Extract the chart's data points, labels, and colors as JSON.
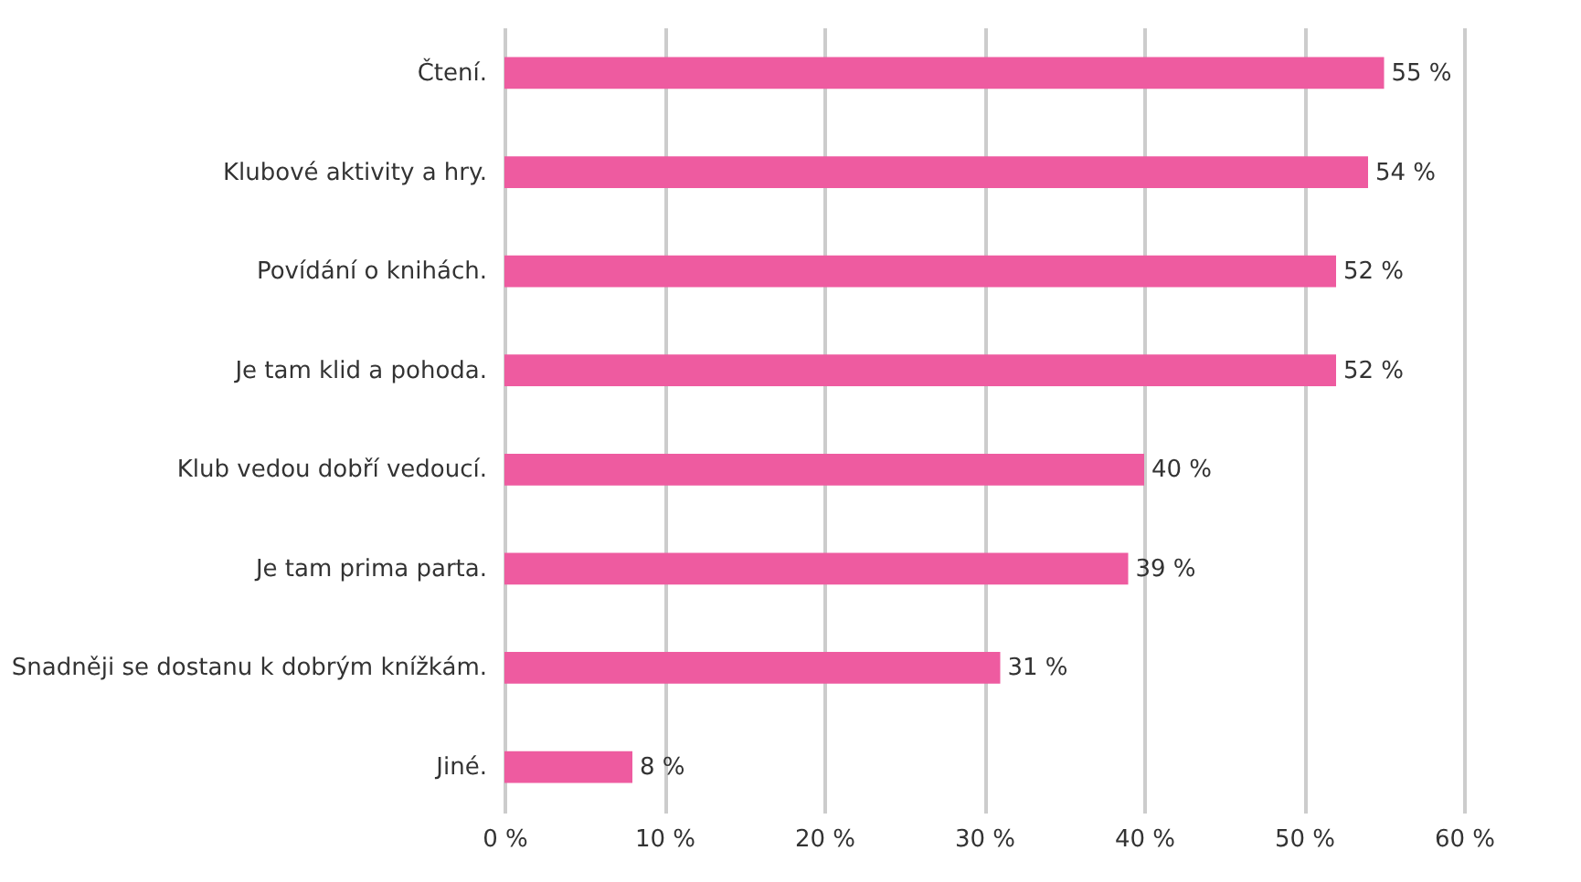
{
  "chart_data": {
    "type": "bar",
    "orientation": "horizontal",
    "categories": [
      "Čtení.",
      "Klubové aktivity a hry.",
      "Povídání o knihách.",
      "Je tam klid a pohoda.",
      "Klub vedou dobří vedoucí.",
      "Je tam prima parta.",
      "Snadněji se dostanu k dobrým knížkám.",
      "Jiné."
    ],
    "values": [
      55,
      54,
      52,
      52,
      40,
      39,
      31,
      8
    ],
    "value_labels": [
      "55 %",
      "54 %",
      "52 %",
      "52 %",
      "40 %",
      "39 %",
      "31 %",
      "8 %"
    ],
    "color": "#ee5ba0",
    "xlim": [
      0,
      60
    ],
    "xticks": [
      {
        "value": 0,
        "label": "0 %"
      },
      {
        "value": 10,
        "label": "10 %"
      },
      {
        "value": 20,
        "label": "20 %"
      },
      {
        "value": 30,
        "label": "30 %"
      },
      {
        "value": 40,
        "label": "40 %"
      },
      {
        "value": 50,
        "label": "50 %"
      },
      {
        "value": 60,
        "label": "60 %"
      }
    ],
    "grid": "x"
  }
}
